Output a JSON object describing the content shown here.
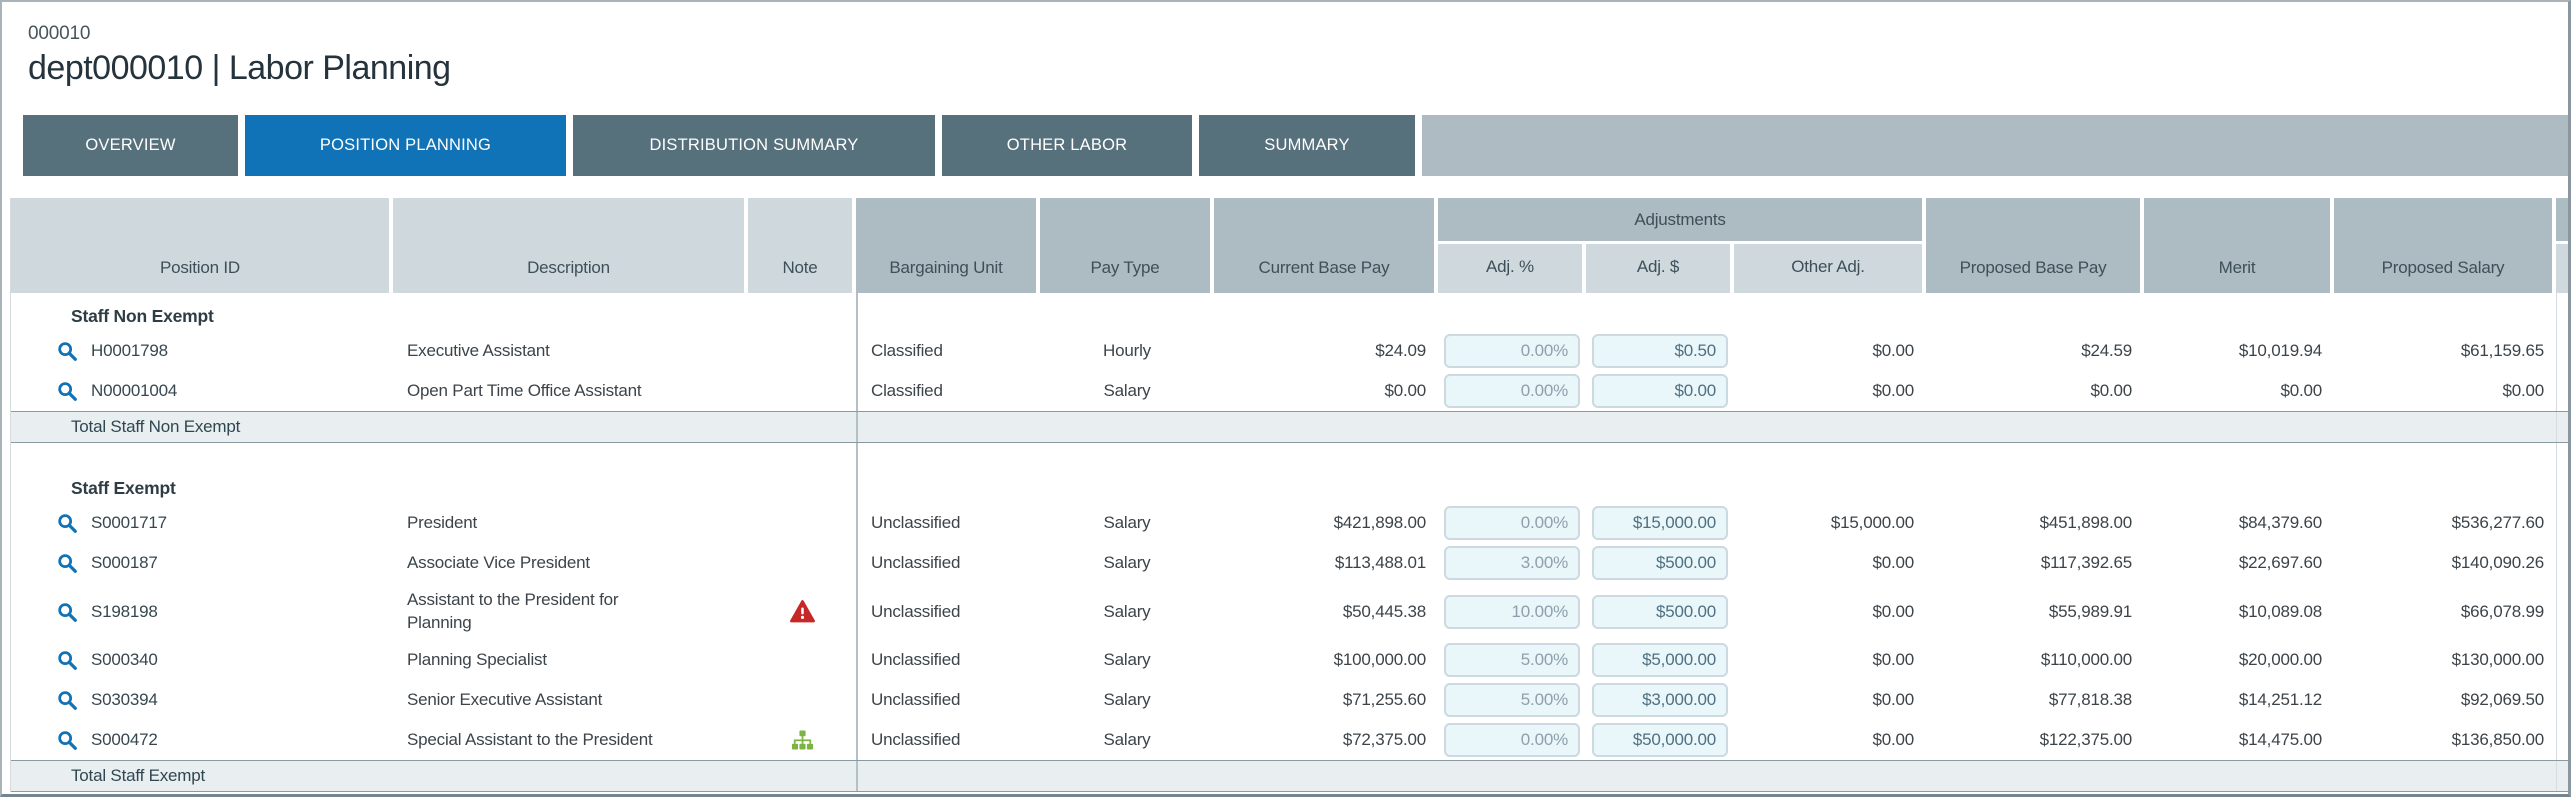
{
  "page": {
    "code": "000010",
    "title": "dept000010 | Labor Planning"
  },
  "tabs": [
    {
      "label": "OVERVIEW",
      "active": false
    },
    {
      "label": "POSITION PLANNING",
      "active": true
    },
    {
      "label": "DISTRIBUTION SUMMARY",
      "active": false
    },
    {
      "label": "OTHER LABOR",
      "active": false
    },
    {
      "label": "SUMMARY",
      "active": false
    }
  ],
  "table": {
    "columns": {
      "position_id": "Position ID",
      "description": "Description",
      "note": "Note",
      "bargaining_unit": "Bargaining Unit",
      "pay_type": "Pay Type",
      "current_base_pay": "Current Base Pay",
      "adjustments_group": "Adjustments",
      "adj_pct": "Adj. %",
      "adj_dollar": "Adj. $",
      "other_adj": "Other Adj.",
      "proposed_base_pay": "Proposed Base Pay",
      "merit": "Merit",
      "proposed_salary": "Proposed Salary"
    },
    "sections": [
      {
        "label": "Staff Non Exempt",
        "total_label": "Total Staff Non Exempt",
        "rows": [
          {
            "position_id": "H0001798",
            "description": "Executive Assistant",
            "note": null,
            "bargaining_unit": "Classified",
            "pay_type": "Hourly",
            "current_base_pay": "$24.09",
            "adj_pct": "0.00%",
            "adj_dollar": "$0.50",
            "other_adj": "$0.00",
            "proposed_base_pay": "$24.59",
            "merit": "$10,019.94",
            "proposed_salary": "$61,159.65"
          },
          {
            "position_id": "N00001004",
            "description": "Open Part Time Office Assistant",
            "note": null,
            "bargaining_unit": "Classified",
            "pay_type": "Salary",
            "current_base_pay": "$0.00",
            "adj_pct": "0.00%",
            "adj_dollar": "$0.00",
            "other_adj": "$0.00",
            "proposed_base_pay": "$0.00",
            "merit": "$0.00",
            "proposed_salary": "$0.00"
          }
        ]
      },
      {
        "label": "Staff Exempt",
        "total_label": "Total Staff Exempt",
        "rows": [
          {
            "position_id": "S0001717",
            "description": "President",
            "note": null,
            "bargaining_unit": "Unclassified",
            "pay_type": "Salary",
            "current_base_pay": "$421,898.00",
            "adj_pct": "0.00%",
            "adj_dollar": "$15,000.00",
            "other_adj": "$15,000.00",
            "proposed_base_pay": "$451,898.00",
            "merit": "$84,379.60",
            "proposed_salary": "$536,277.60"
          },
          {
            "position_id": "S000187",
            "description": "Associate Vice President",
            "note": null,
            "bargaining_unit": "Unclassified",
            "pay_type": "Salary",
            "current_base_pay": "$113,488.01",
            "adj_pct": "3.00%",
            "adj_dollar": "$500.00",
            "other_adj": "$0.00",
            "proposed_base_pay": "$117,392.65",
            "merit": "$22,697.60",
            "proposed_salary": "$140,090.26"
          },
          {
            "position_id": "S198198",
            "description": "Assistant to the President for\nPlanning",
            "note": "warning",
            "bargaining_unit": "Unclassified",
            "pay_type": "Salary",
            "current_base_pay": "$50,445.38",
            "adj_pct": "10.00%",
            "adj_dollar": "$500.00",
            "other_adj": "$0.00",
            "proposed_base_pay": "$55,989.91",
            "merit": "$10,089.08",
            "proposed_salary": "$66,078.99"
          },
          {
            "position_id": "S000340",
            "description": "Planning Specialist",
            "note": null,
            "bargaining_unit": "Unclassified",
            "pay_type": "Salary",
            "current_base_pay": "$100,000.00",
            "adj_pct": "5.00%",
            "adj_dollar": "$5,000.00",
            "other_adj": "$0.00",
            "proposed_base_pay": "$110,000.00",
            "merit": "$20,000.00",
            "proposed_salary": "$130,000.00"
          },
          {
            "position_id": "S030394",
            "description": "Senior Executive Assistant",
            "note": null,
            "bargaining_unit": "Unclassified",
            "pay_type": "Salary",
            "current_base_pay": "$71,255.60",
            "adj_pct": "5.00%",
            "adj_dollar": "$3,000.00",
            "other_adj": "$0.00",
            "proposed_base_pay": "$77,818.38",
            "merit": "$14,251.12",
            "proposed_salary": "$92,069.50"
          },
          {
            "position_id": "S000472",
            "description": "Special Assistant to the President",
            "note": "org",
            "bargaining_unit": "Unclassified",
            "pay_type": "Salary",
            "current_base_pay": "$72,375.00",
            "adj_pct": "0.00%",
            "adj_dollar": "$50,000.00",
            "other_adj": "$0.00",
            "proposed_base_pay": "$122,375.00",
            "merit": "$14,475.00",
            "proposed_salary": "$136,850.00"
          }
        ]
      }
    ]
  },
  "icons": {
    "search": "search-icon",
    "warning": "warning-note-icon",
    "org": "org-chart-note-icon"
  },
  "colors": {
    "active_tab": "#1173b7",
    "inactive_tab": "#56707c",
    "tab_filler": "#aebbc2",
    "header_dark": "#adbbc2",
    "header_light": "#cfd8dc",
    "total_row_bg": "#e9eef1",
    "link_accent": "#1272b6",
    "warning_red": "#c62828",
    "org_green": "#7cb342",
    "input_bg": "#e9f6fa"
  }
}
